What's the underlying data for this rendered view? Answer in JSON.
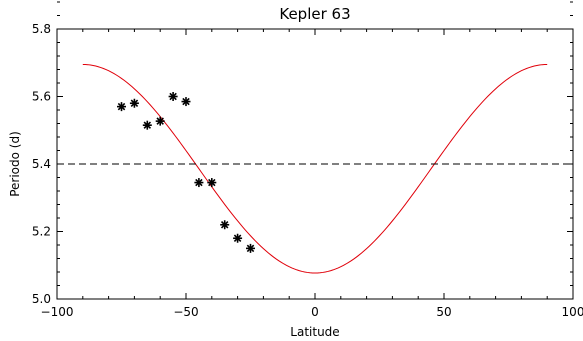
{
  "chart_data": {
    "type": "line",
    "title": "Kepler 63",
    "xlabel": "Latitude",
    "ylabel": "Periodo (d)",
    "xlim": [
      -100,
      100
    ],
    "ylim": [
      5.0,
      5.8
    ],
    "xticks": [
      -100,
      -50,
      0,
      50,
      100
    ],
    "xtick_labels": [
      "−100",
      "−50",
      "0",
      "50",
      "100"
    ],
    "yticks": [
      5.0,
      5.2,
      5.4,
      5.6,
      5.8
    ],
    "ytick_labels": [
      "5.0",
      "5.2",
      "5.4",
      "5.6",
      "5.8"
    ],
    "grid": false,
    "series": [
      {
        "type": "line",
        "color": "#e0000a",
        "model": {
          "x_range": [
            -90,
            90
          ],
          "y_min_at_equator": 5.077,
          "y_max_at_pole": 5.695
        }
      },
      {
        "type": "scatter",
        "marker": "asterisk",
        "color": "#000000",
        "x": [
          -75,
          -70,
          -65,
          -60,
          -55,
          -50,
          -45,
          -40,
          -35,
          -30,
          -25
        ],
        "y": [
          5.57,
          5.58,
          5.515,
          5.527,
          5.6,
          5.585,
          5.345,
          5.345,
          5.22,
          5.18,
          5.15
        ]
      },
      {
        "type": "hline",
        "style": "dashed",
        "color": "#000000",
        "y": 5.4
      }
    ]
  }
}
